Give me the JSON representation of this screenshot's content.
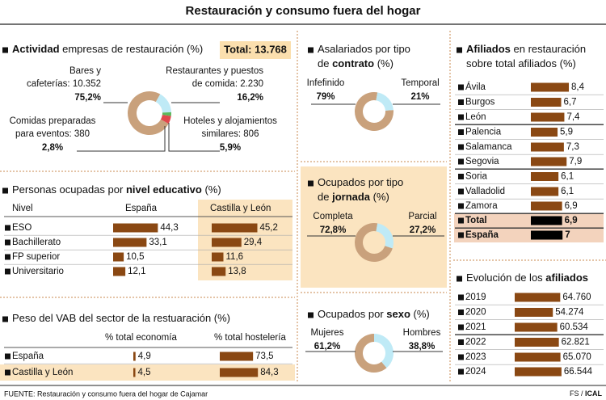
{
  "title": "Restauración y consumo fuera del hogar",
  "source": "FUENTE: Restauración y consumo fuera del hogar de Cajamar",
  "credit": [
    {
      "text": "FS / "
    },
    {
      "text": "ICAL",
      "bold": true
    }
  ],
  "chart_data": [
    {
      "type": "pie",
      "title": [
        [
          {
            "text": "Actividad",
            "bold": true
          },
          {
            "text": " empresas de restauración (%)"
          }
        ]
      ],
      "total_label": "Total: 13.768",
      "categories": [
        [
          "Bares y",
          "cafeterías: 10.352"
        ],
        [
          "Restaurantes y puestos",
          "de comida: 2.230"
        ],
        [
          "Comidas preparadas",
          "para eventos: 380"
        ],
        [
          "Hoteles y alojamientos",
          "similares: 806"
        ]
      ],
      "values": [
        75.2,
        16.2,
        2.8,
        5.9
      ],
      "value_labels": [
        "75,2%",
        "16,2%",
        "2,8%",
        "5,9%"
      ],
      "colors": [
        "#c9a17c",
        "#bfeaf6",
        "#5cb85c",
        "#e0474c"
      ]
    },
    {
      "type": "bar",
      "title": [
        [
          {
            "text": "Personas ocupadas por "
          },
          {
            "text": "nivel educativo",
            "bold": true
          },
          {
            "text": " (%)"
          }
        ]
      ],
      "column_header": "Nivel",
      "categories": [
        "ESO",
        "Bachillerato",
        "FP superior",
        "Universitario"
      ],
      "color": "#8a4813",
      "series": [
        {
          "name": "España",
          "values": [
            44.3,
            33.1,
            10.5,
            12.1
          ],
          "value_labels": [
            "44,3",
            "33,1",
            "10,5",
            "12,1"
          ]
        },
        {
          "name": "Castilla y León",
          "values": [
            45.2,
            29.4,
            11.6,
            13.8
          ],
          "value_labels": [
            "45,2",
            "29,4",
            "11,6",
            "13,8"
          ]
        }
      ]
    },
    {
      "type": "bar",
      "title": [
        [
          {
            "text": "Peso del VAB del sector de la restuaración (%)"
          }
        ]
      ],
      "categories": [
        "España",
        "Castilla y León"
      ],
      "color": "#8a4813",
      "series": [
        {
          "name": "% total economía",
          "values": [
            4.9,
            4.5
          ],
          "value_labels": [
            "4,9",
            "4,5"
          ]
        },
        {
          "name": "% total hostelería",
          "values": [
            73.5,
            84.3
          ],
          "value_labels": [
            "73,5",
            "84,3"
          ]
        }
      ]
    },
    {
      "type": "pie",
      "title": [
        [
          {
            "text": "Asalariados por tipo"
          }
        ],
        [
          {
            "text": "de "
          },
          {
            "text": "contrato",
            "bold": true
          },
          {
            "text": " (%)"
          }
        ]
      ],
      "categories": [
        [
          "Infefinido"
        ],
        [
          "Temporal"
        ]
      ],
      "values": [
        79,
        21
      ],
      "value_labels": [
        "79%",
        "21%"
      ],
      "colors": [
        "#c9a17c",
        "#bfeaf6"
      ]
    },
    {
      "type": "pie",
      "title": [
        [
          {
            "text": "Ocupados por tipo"
          }
        ],
        [
          {
            "text": "de "
          },
          {
            "text": "jornada",
            "bold": true
          },
          {
            "text": " (%)"
          }
        ]
      ],
      "categories": [
        [
          "Completa"
        ],
        [
          "Parcial"
        ]
      ],
      "values": [
        72.8,
        27.2
      ],
      "value_labels": [
        "72,8%",
        "27,2%"
      ],
      "colors": [
        "#c9a17c",
        "#bfeaf6"
      ]
    },
    {
      "type": "pie",
      "title": [
        [
          {
            "text": "Ocupados por "
          },
          {
            "text": "sexo",
            "bold": true
          },
          {
            "text": " (%)"
          }
        ]
      ],
      "categories": [
        [
          "Mujeres"
        ],
        [
          "Hombres"
        ]
      ],
      "values": [
        61.2,
        38.8
      ],
      "value_labels": [
        "61,2%",
        "38,8%"
      ],
      "colors": [
        "#c9a17c",
        "#bfeaf6"
      ]
    },
    {
      "type": "bar",
      "title": [
        [
          {
            "text": "Afiliados",
            "bold": true
          },
          {
            "text": " en restauración"
          }
        ],
        [
          {
            "text": "sobre total afiliados (%)"
          }
        ]
      ],
      "categories": [
        "Ávila",
        "Burgos",
        "León",
        "Palencia",
        "Salamanca",
        "Segovia",
        "Soria",
        "Valladolid",
        "Zamora",
        "Total",
        "España"
      ],
      "values": [
        8.4,
        6.7,
        7.4,
        5.9,
        7.3,
        7.9,
        6.1,
        6.1,
        6.9,
        6.9,
        7
      ],
      "value_labels": [
        "8,4",
        "6,7",
        "7,4",
        "5,9",
        "7,3",
        "7,9",
        "6,1",
        "6,1",
        "6,9",
        "6,9",
        "7"
      ],
      "colors": [
        "#8a4813",
        "#8a4813",
        "#8a4813",
        "#8a4813",
        "#8a4813",
        "#8a4813",
        "#8a4813",
        "#8a4813",
        "#8a4813",
        "#000000",
        "#000000"
      ]
    },
    {
      "type": "bar",
      "title": [
        [
          {
            "text": "Evolución de los "
          },
          {
            "text": "afiliados",
            "bold": true
          }
        ]
      ],
      "categories": [
        "2019",
        "2020",
        "2021",
        "2022",
        "2023",
        "2024"
      ],
      "color": "#8a4813",
      "values": [
        64760,
        54274,
        60534,
        62821,
        65070,
        66544
      ],
      "value_labels": [
        "64.760",
        "54.274",
        "60.534",
        "62.821",
        "65.070",
        "66.544"
      ]
    }
  ]
}
